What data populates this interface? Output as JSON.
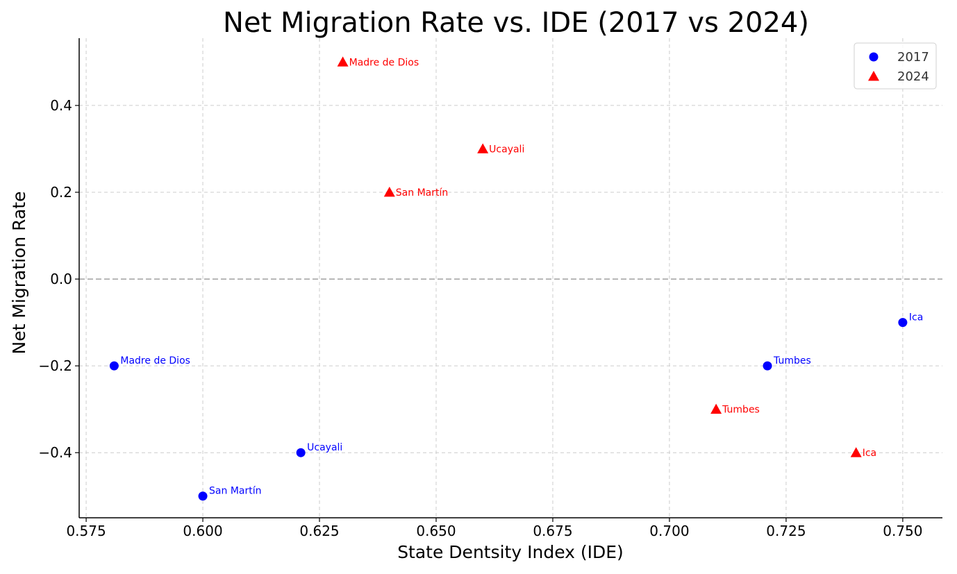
{
  "chart_data": {
    "type": "scatter",
    "title": "Net Migration Rate vs. IDE (2017 vs 2024)",
    "xlabel": "State Dentsity Index (IDE)",
    "ylabel": "Net Migration Rate",
    "xlim": [
      0.5735,
      0.7585
    ],
    "ylim": [
      -0.55,
      0.555
    ],
    "xticks": [
      0.575,
      0.6,
      0.625,
      0.65,
      0.675,
      0.7,
      0.725,
      0.75
    ],
    "xtick_labels": [
      "0.575",
      "0.600",
      "0.625",
      "0.650",
      "0.675",
      "0.700",
      "0.725",
      "0.750"
    ],
    "yticks": [
      -0.4,
      -0.2,
      0.0,
      0.2,
      0.4
    ],
    "ytick_labels": [
      "−0.4",
      "−0.2",
      "0.0",
      "0.2",
      "0.4"
    ],
    "grid": true,
    "zero_line": true,
    "legend_position": "top-right",
    "series": [
      {
        "name": "2017",
        "marker": "circle",
        "color": "#0000ff",
        "points": [
          {
            "label": "Madre de Dios",
            "x": 0.581,
            "y": -0.2
          },
          {
            "label": "San Martín",
            "x": 0.6,
            "y": -0.5
          },
          {
            "label": "Ucayali",
            "x": 0.621,
            "y": -0.4
          },
          {
            "label": "Tumbes",
            "x": 0.721,
            "y": -0.2
          },
          {
            "label": "Ica",
            "x": 0.75,
            "y": -0.1
          }
        ]
      },
      {
        "name": "2024",
        "marker": "triangle",
        "color": "#ff0000",
        "points": [
          {
            "label": "Madre de Dios",
            "x": 0.63,
            "y": 0.5
          },
          {
            "label": "Ucayali",
            "x": 0.66,
            "y": 0.3
          },
          {
            "label": "San Martín",
            "x": 0.64,
            "y": 0.2
          },
          {
            "label": "Tumbes",
            "x": 0.71,
            "y": -0.3
          },
          {
            "label": "Ica",
            "x": 0.74,
            "y": -0.4
          }
        ]
      }
    ]
  }
}
